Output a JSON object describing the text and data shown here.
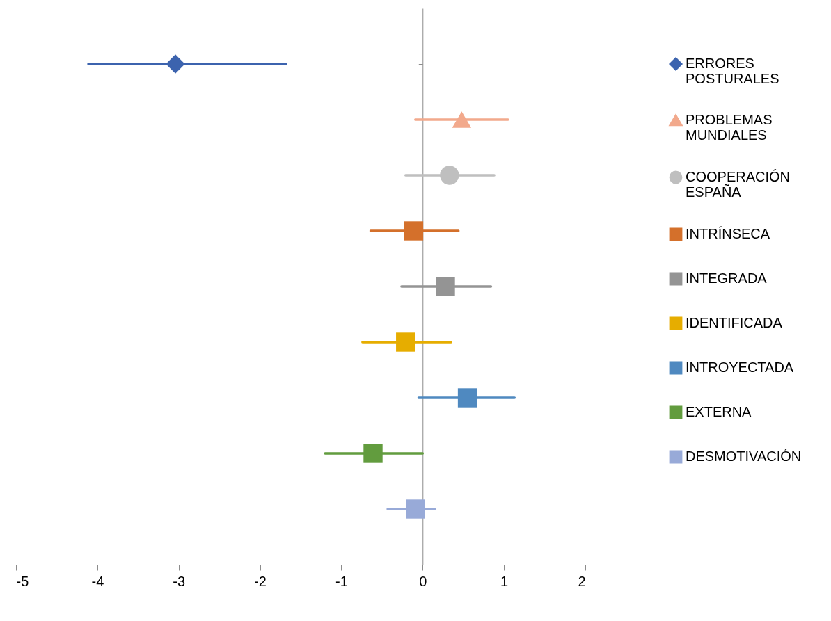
{
  "chart_data": {
    "type": "scatter",
    "orientation": "horizontal",
    "legend": "right",
    "tick_labels": "x",
    "categories": [
      null,
      null,
      null,
      null,
      null,
      null,
      null,
      null,
      null
    ],
    "xlim": [
      -5,
      2
    ],
    "xticks": [
      -5,
      -4,
      -3,
      -2,
      -1,
      0,
      1,
      2
    ],
    "series": [
      {
        "name": "ERRORES POSTURALES",
        "color": "#3c63ae",
        "marker": "diamond",
        "values": [
          -3.04,
          null,
          null,
          null,
          null,
          null,
          null,
          null,
          null
        ],
        "errors": [
          [
            -4.11,
            -1.68
          ],
          null,
          null,
          null,
          null,
          null,
          null,
          null,
          null
        ]
      },
      {
        "name": "PROBLEMAS MUNDIALES",
        "color": "#f2a98c",
        "marker": "triangle",
        "values": [
          null,
          0.48,
          null,
          null,
          null,
          null,
          null,
          null,
          null
        ],
        "errors": [
          null,
          [
            -0.09,
            1.05
          ],
          null,
          null,
          null,
          null,
          null,
          null,
          null
        ]
      },
      {
        "name": "COOPERACIÓN ESPAÑA",
        "color": "#bfbfbf",
        "marker": "circle",
        "values": [
          null,
          null,
          0.33,
          null,
          null,
          null,
          null,
          null,
          null
        ],
        "errors": [
          null,
          null,
          [
            -0.21,
            0.88
          ],
          null,
          null,
          null,
          null,
          null,
          null
        ]
      },
      {
        "name": "INTRÍNSECA",
        "color": "#d4702b",
        "marker": "square",
        "values": [
          null,
          null,
          null,
          -0.11,
          null,
          null,
          null,
          null,
          null
        ],
        "errors": [
          null,
          null,
          null,
          [
            -0.64,
            0.44
          ],
          null,
          null,
          null,
          null,
          null
        ]
      },
      {
        "name": "INTEGRADA",
        "color": "#949494",
        "marker": "square",
        "values": [
          null,
          null,
          null,
          null,
          0.28,
          null,
          null,
          null,
          null
        ],
        "errors": [
          null,
          null,
          null,
          null,
          [
            -0.26,
            0.84
          ],
          null,
          null,
          null,
          null
        ]
      },
      {
        "name": "IDENTIFICADA",
        "color": "#e6ad00",
        "marker": "square",
        "values": [
          null,
          null,
          null,
          null,
          null,
          -0.21,
          null,
          null,
          null
        ],
        "errors": [
          null,
          null,
          null,
          null,
          null,
          [
            -0.74,
            0.35
          ],
          null,
          null,
          null
        ]
      },
      {
        "name": "INTROYECTADA",
        "color": "#4f89c0",
        "marker": "square",
        "values": [
          null,
          null,
          null,
          null,
          null,
          null,
          0.55,
          null,
          null
        ],
        "errors": [
          null,
          null,
          null,
          null,
          null,
          null,
          [
            -0.05,
            1.13
          ],
          null,
          null
        ]
      },
      {
        "name": "EXTERNA",
        "color": "#629c3e",
        "marker": "square",
        "values": [
          null,
          null,
          null,
          null,
          null,
          null,
          null,
          -0.61,
          null
        ],
        "errors": [
          null,
          null,
          null,
          null,
          null,
          null,
          null,
          [
            -1.2,
            0.0
          ],
          null
        ]
      },
      {
        "name": "DESMOTIVACIÓN",
        "color": "#98aad8",
        "marker": "square",
        "values": [
          null,
          null,
          null,
          null,
          null,
          null,
          null,
          null,
          -0.09
        ],
        "errors": [
          null,
          null,
          null,
          null,
          null,
          null,
          null,
          null,
          [
            -0.43,
            0.15
          ]
        ]
      }
    ]
  }
}
